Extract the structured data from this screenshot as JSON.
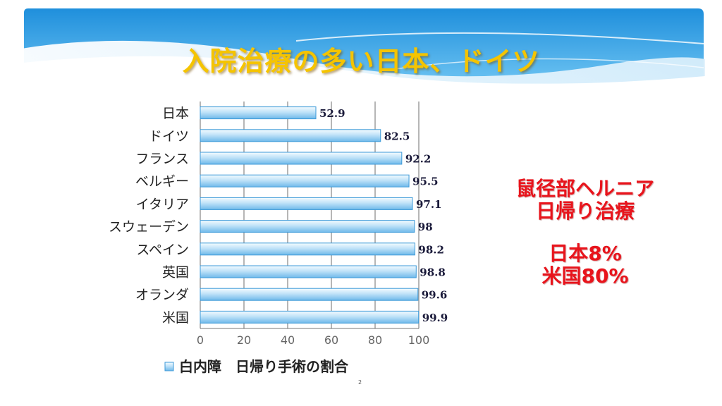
{
  "slide": {
    "title": "入院治療の多い日本、ドイツ",
    "page_number": "2",
    "colors": {
      "title": "#f5c400",
      "note": "#e8141c",
      "header_blue": "#1f8fdc"
    }
  },
  "note": {
    "line1": "鼠径部ヘルニア",
    "line2": "日帰り治療",
    "line3": "日本8%",
    "line4": "米国80%"
  },
  "chart_data": {
    "type": "bar",
    "orientation": "horizontal",
    "categories": [
      "日本",
      "ドイツ",
      "フランス",
      "ベルギー",
      "イタリア",
      "スウェーデン",
      "スペイン",
      "英国",
      "オランダ",
      "米国"
    ],
    "series": [
      {
        "name": "白内障　日帰り手術の割合",
        "values": [
          52.9,
          82.5,
          92.2,
          95.5,
          97.1,
          98,
          98.2,
          98.8,
          99.6,
          99.9
        ]
      }
    ],
    "value_labels": [
      "52.9",
      "82.5",
      "92.2",
      "95.5",
      "97.1",
      "98",
      "98.2",
      "98.8",
      "99.6",
      "99.9"
    ],
    "xlim": [
      0,
      100
    ],
    "xticks": [
      "0",
      "20",
      "40",
      "60",
      "80",
      "100"
    ],
    "grid": "vertical",
    "legend": "bottom",
    "colors": {
      "bar_top": "#e8f5ff",
      "bar_bottom": "#7fc4ee",
      "bar_edge": "#3d9ad8"
    }
  }
}
